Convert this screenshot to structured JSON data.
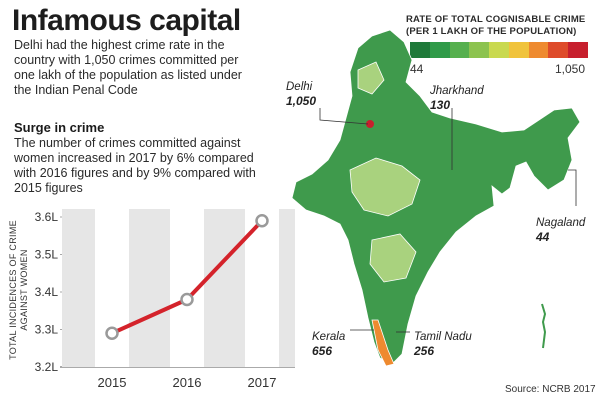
{
  "title": "Infamous capital",
  "intro": "Delhi had the highest crime rate in the country with 1,050 crimes committed per one lakh of the population as listed under the Indian Penal Code",
  "subheading": "Surge in crime",
  "subtext": "The number of crimes committed against women increased in 2017 by 6% compared with 2016 figures and by 9% compared with 2015 figures",
  "legend": {
    "title_line1": "RATE OF TOTAL COGNISABLE CRIME",
    "title_line2": "(PER 1 LAKH OF THE POPULATION)",
    "min_label": "44",
    "max_label": "1,050",
    "colors": [
      "#1f7a3a",
      "#2f9a48",
      "#56b04e",
      "#8cc34f",
      "#c9d94f",
      "#f0c33c",
      "#ee8a2f",
      "#de4b2a",
      "#c71f2d"
    ]
  },
  "map": {
    "land_color": "#3f9a4c",
    "light_color": "#a9d27e",
    "labels": [
      {
        "name": "Delhi",
        "value": "1,050"
      },
      {
        "name": "Jharkhand",
        "value": "130"
      },
      {
        "name": "Nagaland",
        "value": "44"
      },
      {
        "name": "Kerala",
        "value": "656"
      },
      {
        "name": "Tamil Nadu",
        "value": "256"
      }
    ]
  },
  "source": "Source: NCRB 2017",
  "chart_data": {
    "type": "line",
    "x": [
      "2015",
      "2016",
      "2017"
    ],
    "values": [
      3.29,
      3.38,
      3.59
    ],
    "ylabel_line1": "TOTAL INCIDENCES OF CRIME",
    "ylabel_line2": "AGAINST WOMEN",
    "yticks": [
      3.2,
      3.3,
      3.4,
      3.5,
      3.6
    ],
    "ytick_labels": [
      "3.2L",
      "3.3L",
      "3.4L",
      "3.5L",
      "3.6L"
    ],
    "ylim": [
      3.2,
      3.6
    ],
    "line_color": "#d4232b"
  }
}
